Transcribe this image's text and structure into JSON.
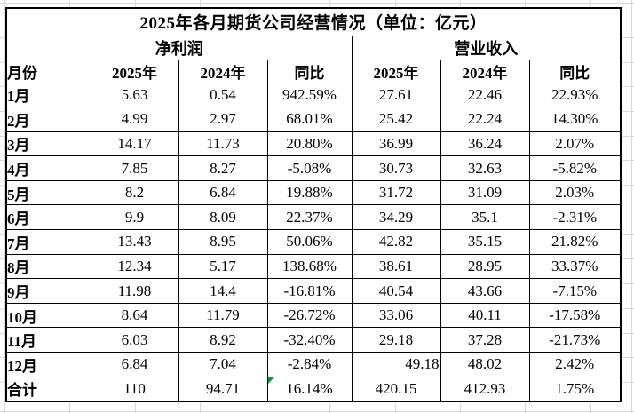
{
  "title": "2025年各月期货公司经营情况（单位：亿元）",
  "group_headers": {
    "net_profit": "净利润",
    "revenue": "营业收入"
  },
  "column_headers": {
    "month": "月份",
    "y2025": "2025年",
    "y2024": "2024年",
    "yoy": "同比"
  },
  "column_keys": [
    "np2025",
    "np2024",
    "npyoy",
    "rev2025",
    "rev2024",
    "revyoy"
  ],
  "rows": [
    {
      "month": "1月",
      "values": [
        "5.63",
        "0.54",
        "942.59%",
        "27.61",
        "22.46",
        "22.93%"
      ]
    },
    {
      "month": "2月",
      "values": [
        "4.99",
        "2.97",
        "68.01%",
        "25.42",
        "22.24",
        "14.30%"
      ]
    },
    {
      "month": "3月",
      "values": [
        "14.17",
        "11.73",
        "20.80%",
        "36.99",
        "36.24",
        "2.07%"
      ]
    },
    {
      "month": "4月",
      "values": [
        "7.85",
        "8.27",
        "-5.08%",
        "30.73",
        "32.63",
        "-5.82%"
      ]
    },
    {
      "month": "5月",
      "values": [
        "8.2",
        "6.84",
        "19.88%",
        "31.72",
        "31.09",
        "2.03%"
      ]
    },
    {
      "month": "6月",
      "values": [
        "9.9",
        "8.09",
        "22.37%",
        "34.29",
        "35.1",
        "-2.31%"
      ]
    },
    {
      "month": "7月",
      "values": [
        "13.43",
        "8.95",
        "50.06%",
        "42.82",
        "35.15",
        "21.82%"
      ]
    },
    {
      "month": "8月",
      "values": [
        "12.34",
        "5.17",
        "138.68%",
        "38.61",
        "28.95",
        "33.37%"
      ]
    },
    {
      "month": "9月",
      "values": [
        "11.98",
        "14.4",
        "-16.81%",
        "40.54",
        "43.66",
        "-7.15%"
      ]
    },
    {
      "month": "10月",
      "values": [
        "8.64",
        "11.79",
        "-26.72%",
        "33.06",
        "40.11",
        "-17.58%"
      ]
    },
    {
      "month": "11月",
      "values": [
        "6.03",
        "8.92",
        "-32.40%",
        "29.18",
        "37.28",
        "-21.73%"
      ]
    },
    {
      "month": "12月",
      "values": [
        "6.84",
        "7.04",
        "-2.84%",
        "49.18",
        "48.02",
        "2.42%"
      ],
      "align_overrides": {
        "3": "right"
      }
    },
    {
      "month": "合计",
      "values": [
        "110",
        "94.71",
        "16.14%",
        "420.15",
        "412.93",
        "1.75%"
      ],
      "is_total": true,
      "error_indicator_col": 2
    }
  ],
  "colors": {
    "table_border": "#000000",
    "faint_gridline": "#d9d9d9",
    "error_indicator": "#00A03C",
    "text": "#000000",
    "background": "#ffffff"
  }
}
